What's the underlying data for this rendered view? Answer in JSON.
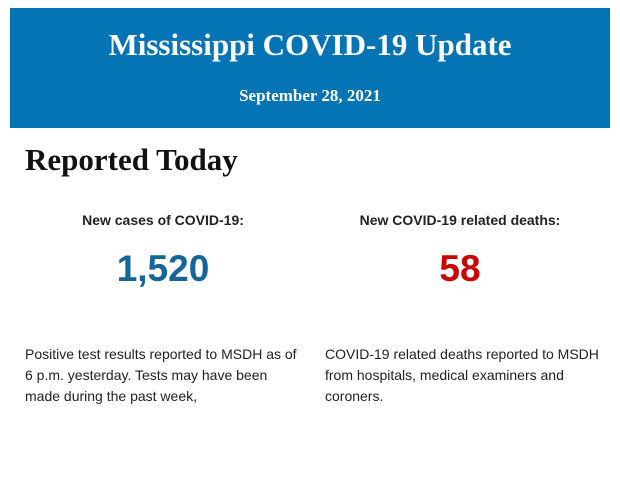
{
  "header": {
    "title": "Mississippi COVID-19 Update",
    "date": "September 28, 2021",
    "background_color": "#0474b4"
  },
  "section_title": "Reported Today",
  "stats": [
    {
      "label": "New cases of COVID-19:",
      "value": "1,520",
      "color": "#14669a",
      "description": "Positive test results reported to MSDH as of 6 p.m. yesterday. Tests may have been made during the past week,"
    },
    {
      "label": "New COVID-19 related deaths:",
      "value": "58",
      "color": "#cc0000",
      "description": "COVID-19 related deaths reported to MSDH from hospitals, medical examiners and coroners."
    }
  ]
}
